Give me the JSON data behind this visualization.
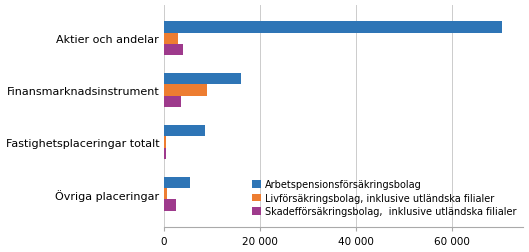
{
  "categories": [
    "Övriga placeringar",
    "Fastighetsplaceringar totalt",
    "Finansmarknadsinstrument",
    "Aktier och andelar"
  ],
  "series": [
    {
      "label": "Arbetspensionsförsäkringsbolag",
      "color": "#2E75B6",
      "values": [
        5500,
        8500,
        16000,
        70500
      ]
    },
    {
      "label": "Livförsäkringsbolag, inklusive utländska filialer",
      "color": "#ED7D31",
      "values": [
        700,
        400,
        9000,
        3000
      ]
    },
    {
      "label": "Skadefförsäkringsbolag,  inklusive utländska filialer",
      "color": "#9E3A8C",
      "values": [
        2500,
        500,
        3500,
        4000
      ]
    }
  ],
  "xlim": [
    0,
    75000
  ],
  "xticks": [
    0,
    20000,
    40000,
    60000
  ],
  "background_color": "#ffffff",
  "bar_height": 0.22,
  "legend_fontsize": 7,
  "tick_fontsize": 7.5,
  "label_fontsize": 8
}
